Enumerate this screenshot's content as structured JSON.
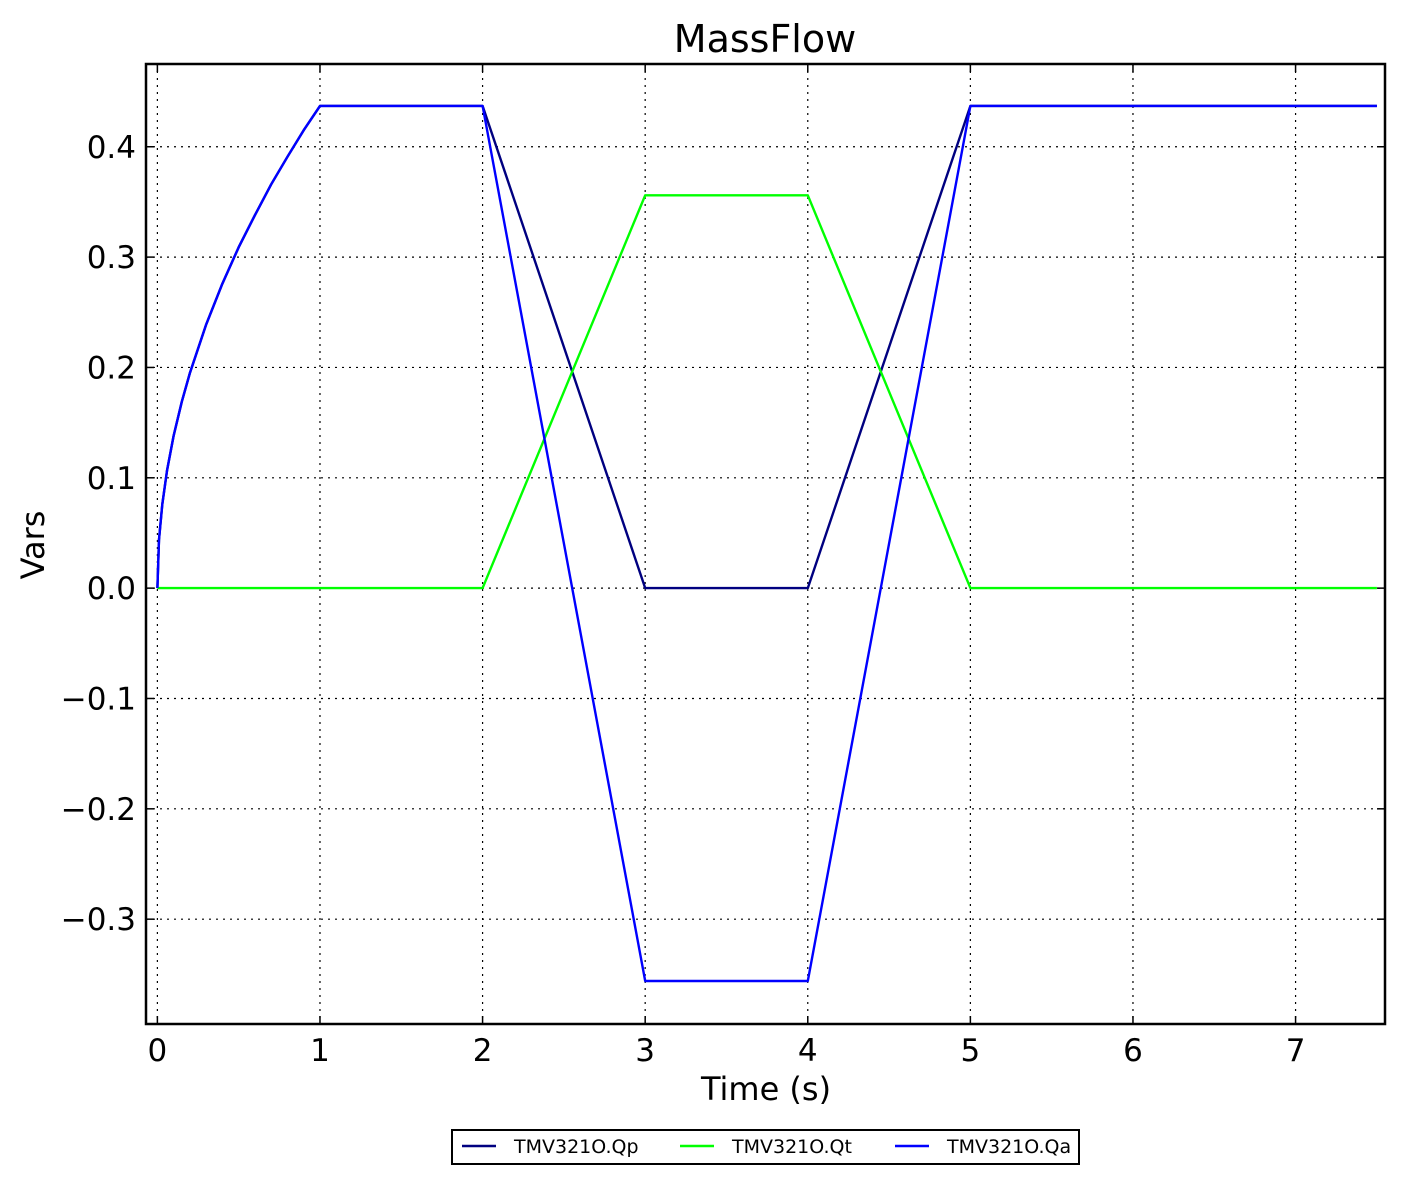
{
  "chart_data": {
    "type": "line",
    "title": "MassFlow",
    "xlabel": "Time (s)",
    "ylabel": "Vars",
    "xlim": [
      -0.07,
      7.55
    ],
    "ylim": [
      -0.395,
      0.475
    ],
    "xticks": [
      0,
      1,
      2,
      3,
      4,
      5,
      6,
      7
    ],
    "xtick_labels": [
      "0",
      "1",
      "2",
      "3",
      "4",
      "5",
      "6",
      "7"
    ],
    "yticks": [
      0.4,
      0.3,
      0.2,
      0.1,
      0.0,
      -0.1,
      -0.2,
      -0.3
    ],
    "ytick_labels": [
      "0.4",
      "0.3",
      "0.2",
      "0.1",
      "0.0",
      "−0.1",
      "−0.2",
      "−0.3"
    ],
    "grid": true,
    "legend_position": "bottom-center",
    "series": [
      {
        "name": "TMV321O.Qp",
        "color": "#000080",
        "x": [
          0,
          0.01,
          0.03,
          0.06,
          0.1,
          0.15,
          0.2,
          0.3,
          0.4,
          0.5,
          0.6,
          0.7,
          0.8,
          0.9,
          1.0,
          2.0,
          3.0,
          4.0,
          5.0,
          7.5
        ],
        "y": [
          0,
          0.044,
          0.076,
          0.107,
          0.138,
          0.169,
          0.195,
          0.239,
          0.276,
          0.309,
          0.338,
          0.366,
          0.391,
          0.415,
          0.437,
          0.437,
          0.0,
          0.0,
          0.437,
          0.437
        ]
      },
      {
        "name": "TMV321O.Qt",
        "color": "#00ff00",
        "x": [
          0,
          2.0,
          3.0,
          4.0,
          5.0,
          7.5
        ],
        "y": [
          0,
          0,
          0.356,
          0.356,
          0,
          0
        ]
      },
      {
        "name": "TMV321O.Qa",
        "color": "#0000ff",
        "x": [
          0,
          0.01,
          0.03,
          0.06,
          0.1,
          0.15,
          0.2,
          0.3,
          0.4,
          0.5,
          0.6,
          0.7,
          0.8,
          0.9,
          1.0,
          2.0,
          3.0,
          4.0,
          5.0,
          7.5
        ],
        "y": [
          0,
          0.044,
          0.076,
          0.107,
          0.138,
          0.169,
          0.195,
          0.239,
          0.276,
          0.309,
          0.338,
          0.366,
          0.391,
          0.415,
          0.437,
          0.437,
          -0.356,
          -0.356,
          0.437,
          0.437
        ]
      }
    ]
  }
}
